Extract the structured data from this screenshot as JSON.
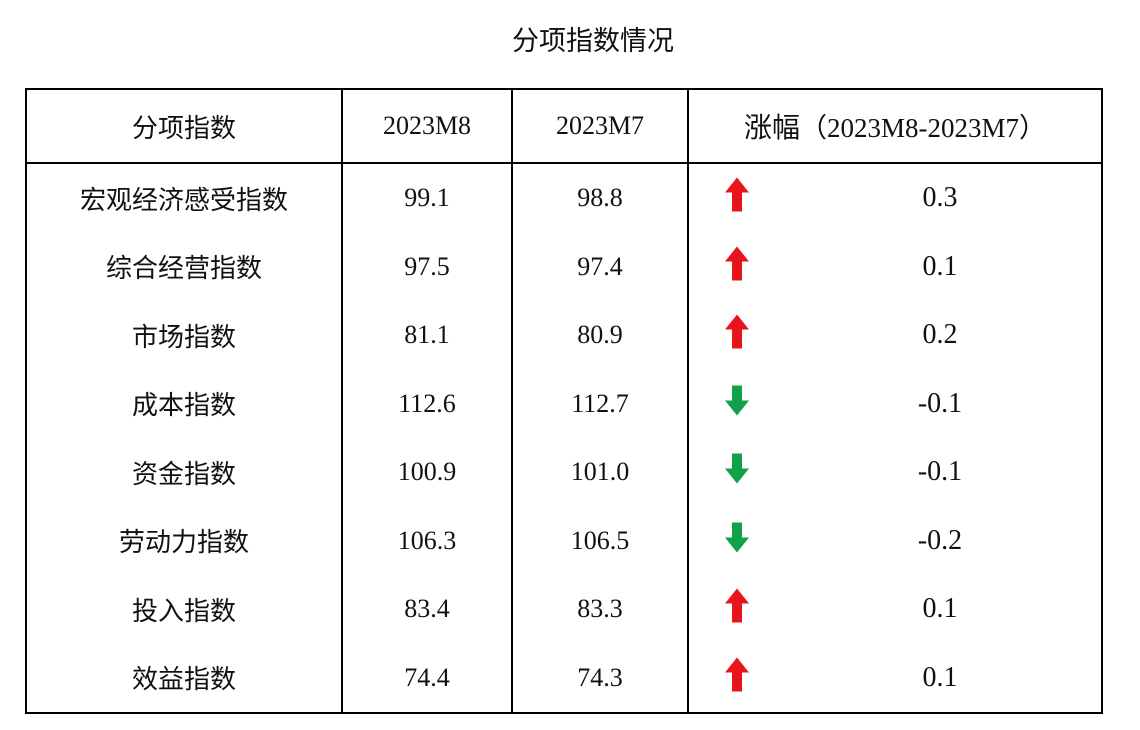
{
  "title": "分项指数情况",
  "table": {
    "headers": {
      "index": "分项指数",
      "m8": "2023M8",
      "m7": "2023M7",
      "change_label": "涨幅",
      "change_paren": "（2023M8-2023M7）"
    },
    "rows": [
      {
        "name": "宏观经济感受指数",
        "m8": "99.1",
        "m7": "98.8",
        "trend": "up",
        "trend_icon": "red-up-arrow-icon",
        "change": "0.3"
      },
      {
        "name": "综合经营指数",
        "m8": "97.5",
        "m7": "97.4",
        "trend": "up",
        "trend_icon": "red-up-arrow-icon",
        "change": "0.1"
      },
      {
        "name": "市场指数",
        "m8": "81.1",
        "m7": "80.9",
        "trend": "up",
        "trend_icon": "red-up-arrow-icon",
        "change": "0.2"
      },
      {
        "name": "成本指数",
        "m8": "112.6",
        "m7": "112.7",
        "trend": "down",
        "trend_icon": "green-down-arrow-icon",
        "change": "-0.1"
      },
      {
        "name": "资金指数",
        "m8": "100.9",
        "m7": "101.0",
        "trend": "down",
        "trend_icon": "green-down-arrow-icon",
        "change": "-0.1"
      },
      {
        "name": "劳动力指数",
        "m8": "106.3",
        "m7": "106.5",
        "trend": "down",
        "trend_icon": "green-down-arrow-icon",
        "change": "-0.2"
      },
      {
        "name": "投入指数",
        "m8": "83.4",
        "m7": "83.3",
        "trend": "up",
        "trend_icon": "red-up-arrow-icon",
        "change": "0.1"
      },
      {
        "name": "效益指数",
        "m8": "74.4",
        "m7": "74.3",
        "trend": "up",
        "trend_icon": "red-up-arrow-icon",
        "change": "0.1"
      }
    ]
  },
  "colors": {
    "up": "#e8141b",
    "down": "#12a14b",
    "border": "#000000"
  }
}
